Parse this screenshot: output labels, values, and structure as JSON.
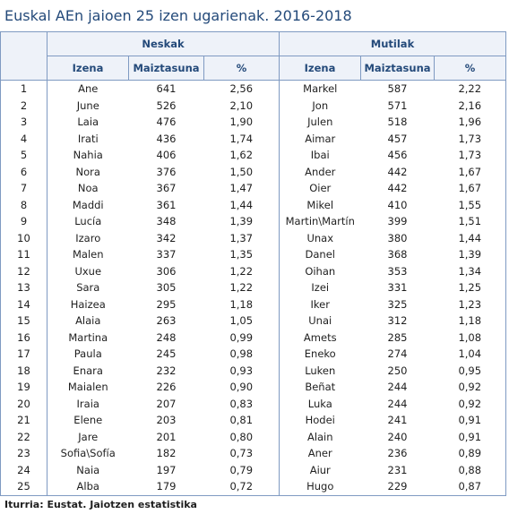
{
  "title": "Euskal AEn jaioen 25 izen ugarienak.  2016-2018",
  "groups": {
    "girls": "Neskak",
    "boys": "Mutilak"
  },
  "columns": {
    "name": "Izena",
    "frequency": "Maiztasuna",
    "percent": "%"
  },
  "rows": [
    {
      "rank": "1",
      "girl_name": "Ane",
      "girl_freq": "641",
      "girl_pct": "2,56",
      "boy_name": "Markel",
      "boy_freq": "587",
      "boy_pct": "2,22"
    },
    {
      "rank": "2",
      "girl_name": "June",
      "girl_freq": "526",
      "girl_pct": "2,10",
      "boy_name": "Jon",
      "boy_freq": "571",
      "boy_pct": "2,16"
    },
    {
      "rank": "3",
      "girl_name": "Laia",
      "girl_freq": "476",
      "girl_pct": "1,90",
      "boy_name": "Julen",
      "boy_freq": "518",
      "boy_pct": "1,96"
    },
    {
      "rank": "4",
      "girl_name": "Irati",
      "girl_freq": "436",
      "girl_pct": "1,74",
      "boy_name": "Aimar",
      "boy_freq": "457",
      "boy_pct": "1,73"
    },
    {
      "rank": "5",
      "girl_name": "Nahia",
      "girl_freq": "406",
      "girl_pct": "1,62",
      "boy_name": "Ibai",
      "boy_freq": "456",
      "boy_pct": "1,73"
    },
    {
      "rank": "6",
      "girl_name": "Nora",
      "girl_freq": "376",
      "girl_pct": "1,50",
      "boy_name": "Ander",
      "boy_freq": "442",
      "boy_pct": "1,67"
    },
    {
      "rank": "7",
      "girl_name": "Noa",
      "girl_freq": "367",
      "girl_pct": "1,47",
      "boy_name": "Oier",
      "boy_freq": "442",
      "boy_pct": "1,67"
    },
    {
      "rank": "8",
      "girl_name": "Maddi",
      "girl_freq": "361",
      "girl_pct": "1,44",
      "boy_name": "Mikel",
      "boy_freq": "410",
      "boy_pct": "1,55"
    },
    {
      "rank": "9",
      "girl_name": "Lucía",
      "girl_freq": "348",
      "girl_pct": "1,39",
      "boy_name": "Martin\\Martín",
      "boy_freq": "399",
      "boy_pct": "1,51"
    },
    {
      "rank": "10",
      "girl_name": "Izaro",
      "girl_freq": "342",
      "girl_pct": "1,37",
      "boy_name": "Unax",
      "boy_freq": "380",
      "boy_pct": "1,44"
    },
    {
      "rank": "11",
      "girl_name": "Malen",
      "girl_freq": "337",
      "girl_pct": "1,35",
      "boy_name": "Danel",
      "boy_freq": "368",
      "boy_pct": "1,39"
    },
    {
      "rank": "12",
      "girl_name": "Uxue",
      "girl_freq": "306",
      "girl_pct": "1,22",
      "boy_name": "Oihan",
      "boy_freq": "353",
      "boy_pct": "1,34"
    },
    {
      "rank": "13",
      "girl_name": "Sara",
      "girl_freq": "305",
      "girl_pct": "1,22",
      "boy_name": "Izei",
      "boy_freq": "331",
      "boy_pct": "1,25"
    },
    {
      "rank": "14",
      "girl_name": "Haizea",
      "girl_freq": "295",
      "girl_pct": "1,18",
      "boy_name": "Iker",
      "boy_freq": "325",
      "boy_pct": "1,23"
    },
    {
      "rank": "15",
      "girl_name": "Alaia",
      "girl_freq": "263",
      "girl_pct": "1,05",
      "boy_name": "Unai",
      "boy_freq": "312",
      "boy_pct": "1,18"
    },
    {
      "rank": "16",
      "girl_name": "Martina",
      "girl_freq": "248",
      "girl_pct": "0,99",
      "boy_name": "Amets",
      "boy_freq": "285",
      "boy_pct": "1,08"
    },
    {
      "rank": "17",
      "girl_name": "Paula",
      "girl_freq": "245",
      "girl_pct": "0,98",
      "boy_name": "Eneko",
      "boy_freq": "274",
      "boy_pct": "1,04"
    },
    {
      "rank": "18",
      "girl_name": "Enara",
      "girl_freq": "232",
      "girl_pct": "0,93",
      "boy_name": "Luken",
      "boy_freq": "250",
      "boy_pct": "0,95"
    },
    {
      "rank": "19",
      "girl_name": "Maialen",
      "girl_freq": "226",
      "girl_pct": "0,90",
      "boy_name": "Beñat",
      "boy_freq": "244",
      "boy_pct": "0,92"
    },
    {
      "rank": "20",
      "girl_name": "Iraia",
      "girl_freq": "207",
      "girl_pct": "0,83",
      "boy_name": "Luka",
      "boy_freq": "244",
      "boy_pct": "0,92"
    },
    {
      "rank": "21",
      "girl_name": "Elene",
      "girl_freq": "203",
      "girl_pct": "0,81",
      "boy_name": "Hodei",
      "boy_freq": "241",
      "boy_pct": "0,91"
    },
    {
      "rank": "22",
      "girl_name": "Jare",
      "girl_freq": "201",
      "girl_pct": "0,80",
      "boy_name": "Alain",
      "boy_freq": "240",
      "boy_pct": "0,91"
    },
    {
      "rank": "23",
      "girl_name": "Sofia\\Sofía",
      "girl_freq": "182",
      "girl_pct": "0,73",
      "boy_name": "Aner",
      "boy_freq": "236",
      "boy_pct": "0,89"
    },
    {
      "rank": "24",
      "girl_name": "Naia",
      "girl_freq": "197",
      "girl_pct": "0,79",
      "boy_name": "Aiur",
      "boy_freq": "231",
      "boy_pct": "0,88"
    },
    {
      "rank": "25",
      "girl_name": "Alba",
      "girl_freq": "179",
      "girl_pct": "0,72",
      "boy_name": "Hugo",
      "boy_freq": "229",
      "boy_pct": "0,87"
    }
  ],
  "source": "Iturria:  Eustat. Jaiotzen estatistika"
}
